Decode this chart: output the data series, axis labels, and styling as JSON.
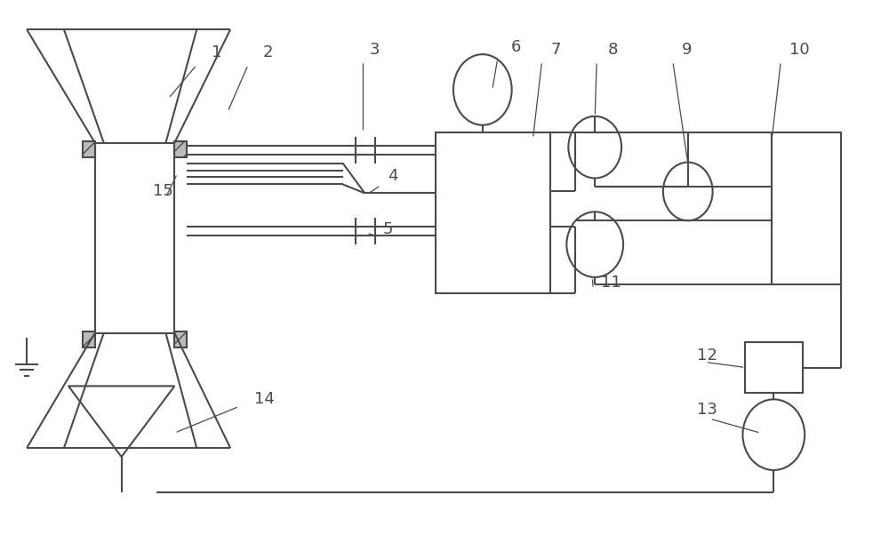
{
  "bg_color": "#ffffff",
  "line_color": "#4a4a4a",
  "lw": 1.5,
  "fig_w": 10.0,
  "fig_h": 6.11
}
